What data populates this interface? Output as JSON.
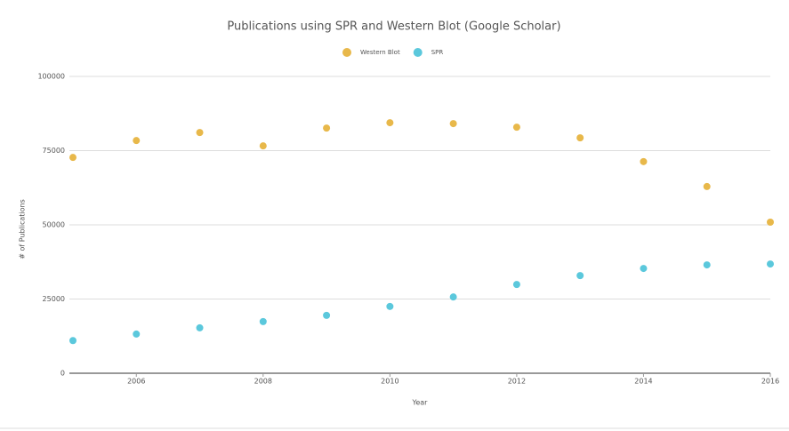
{
  "chart_data": {
    "type": "scatter",
    "title": "Publications using SPR and Western Blot (Google Scholar)",
    "x_label": "Year",
    "y_label": "# of Publications",
    "x": [
      2005,
      2006,
      2007,
      2008,
      2009,
      2010,
      2011,
      2012,
      2013,
      2014,
      2015,
      2016
    ],
    "series": [
      {
        "name": "Western Blot",
        "color": "#e8b84a",
        "values": [
          72700,
          78400,
          81100,
          76600,
          82600,
          84400,
          84100,
          82900,
          79300,
          71300,
          62900,
          50900
        ]
      },
      {
        "name": "SPR",
        "color": "#5bc8dc",
        "values": [
          11000,
          13200,
          15300,
          17400,
          19500,
          22500,
          25700,
          29900,
          32900,
          35300,
          36500,
          36800
        ]
      }
    ],
    "xlim": [
      2005,
      2016
    ],
    "xticks": [
      2006,
      2008,
      2010,
      2012,
      2014,
      2016
    ],
    "ylim": [
      0,
      100000
    ],
    "yticks": [
      0,
      25000,
      50000,
      75000,
      100000
    ],
    "grid": true,
    "legend": "top"
  }
}
